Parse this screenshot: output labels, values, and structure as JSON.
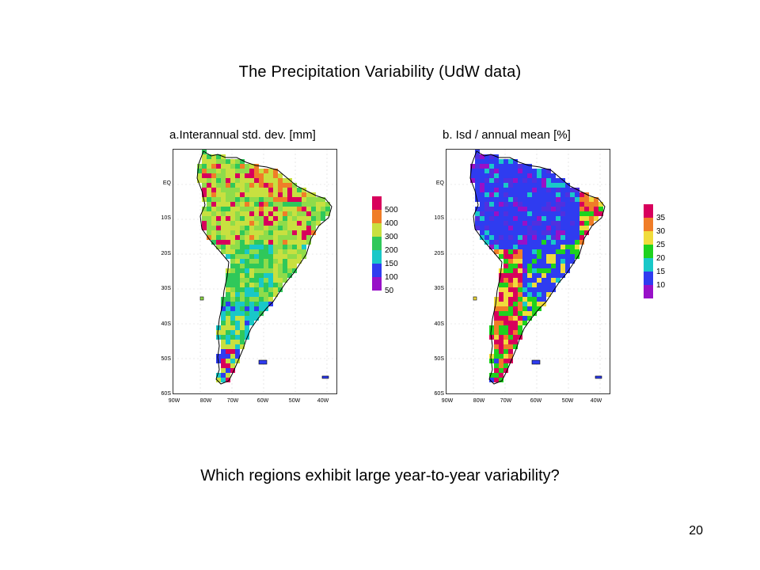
{
  "slide": {
    "title": "The Precipitation Variability (UdW data)",
    "question": "Which regions exhibit large year-to-year variability?",
    "page_number": "20"
  },
  "axes": {
    "lat_labels": [
      "EQ",
      "10S",
      "20S",
      "30S",
      "40S",
      "50S",
      "60S"
    ],
    "lon_labels": [
      "90W",
      "80W",
      "70W",
      "60W",
      "50W",
      "40W"
    ]
  },
  "panels": [
    {
      "title": "a.Interannual std. dev. [mm]",
      "colorbar": {
        "labels": [
          "500",
          "400",
          "300",
          "200",
          "150",
          "100",
          "50"
        ],
        "colors": [
          "#d8005c",
          "#f07d28",
          "#c8e040",
          "#2fc85a",
          "#19c8c8",
          "#2f3cf0",
          "#9810c8"
        ]
      },
      "palette": [
        "#2f3cf0",
        "#19c8c8",
        "#2fc85a",
        "#8fdc4a",
        "#c8e040",
        "#f07d28",
        "#d8005c"
      ]
    },
    {
      "title": "b. Isd / annual mean [%]",
      "colorbar": {
        "labels": [
          "35",
          "30",
          "25",
          "20",
          "15",
          "10"
        ],
        "colors": [
          "#d8005c",
          "#f07d28",
          "#f0dc3c",
          "#1ed21e",
          "#19c8c8",
          "#2f3cf0",
          "#9810c8"
        ]
      },
      "palette": [
        "#2f3cf0",
        "#5030e0",
        "#9810c8",
        "#19c8c8",
        "#1ed21e",
        "#f0dc3c",
        "#f07d28",
        "#d8005c"
      ]
    }
  ]
}
